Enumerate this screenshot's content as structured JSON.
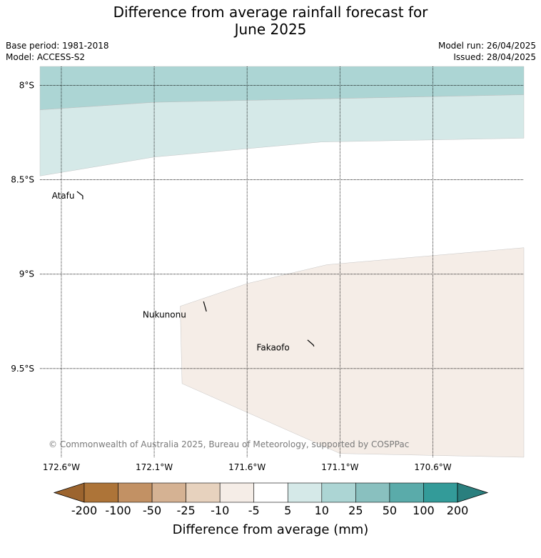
{
  "title_line1": "Difference from average rainfall forecast for",
  "title_line2": "June 2025",
  "base_period": "Base period: 1981-2018",
  "model": "Model: ACCESS-S2",
  "model_run": "Model run: 26/04/2025",
  "issued": "Issued: 28/04/2025",
  "copyright": "© Commonwealth of Australia 2025, Bureau of Meteorology, supported by COSPPac",
  "map": {
    "lat_range": [
      -9.97,
      -7.9
    ],
    "lon_range": [
      -172.715,
      -170.11
    ],
    "lat_ticks": [
      {
        "value": -8.0,
        "label": "8°S"
      },
      {
        "value": -8.5,
        "label": "8.5°S"
      },
      {
        "value": -9.0,
        "label": "9°S"
      },
      {
        "value": -9.5,
        "label": "9.5°S"
      }
    ],
    "lon_ticks": [
      {
        "value": -172.6,
        "label": "172.6°W"
      },
      {
        "value": -172.1,
        "label": "172.1°W"
      },
      {
        "value": -171.6,
        "label": "171.6°W"
      },
      {
        "value": -171.1,
        "label": "171.1°W"
      },
      {
        "value": -170.6,
        "label": "170.6°W"
      }
    ],
    "places": [
      {
        "name": "Atafu",
        "lon": -172.485,
        "lat": -8.585,
        "label_lon": -172.59,
        "label_lat": -8.585
      },
      {
        "name": "Nukunonu",
        "lon": -171.815,
        "lat": -9.19,
        "label_lon": -172.045,
        "label_lat": -9.215
      },
      {
        "name": "Fakaofo",
        "lon": -171.24,
        "lat": -9.375,
        "label_lon": -171.46,
        "label_lat": -9.39
      }
    ]
  },
  "regions": [
    {
      "category": "10 to 25",
      "color": "#acd5d4",
      "polygon": [
        [
          -172.715,
          -7.9
        ],
        [
          -170.11,
          -7.9
        ],
        [
          -170.11,
          -8.05
        ],
        [
          -172.1,
          -8.09
        ],
        [
          -172.715,
          -8.13
        ]
      ]
    },
    {
      "category": "5 to 10",
      "color": "#d5e9e8",
      "polygon": [
        [
          -172.715,
          -8.13
        ],
        [
          -172.1,
          -8.09
        ],
        [
          -170.11,
          -8.05
        ],
        [
          -170.11,
          -8.28
        ],
        [
          -171.2,
          -8.3
        ],
        [
          -172.1,
          -8.38
        ],
        [
          -172.715,
          -8.48
        ]
      ]
    },
    {
      "category": "-10 to -5",
      "color": "#f5ede7",
      "polygon": [
        [
          -170.11,
          -8.86
        ],
        [
          -171.17,
          -8.95
        ],
        [
          -171.6,
          -9.05
        ],
        [
          -171.96,
          -9.17
        ],
        [
          -171.95,
          -9.58
        ],
        [
          -171.1,
          -9.95
        ],
        [
          -170.11,
          -9.97
        ]
      ]
    }
  ],
  "colorbar": {
    "title": "Difference from average (mm)",
    "labels": [
      "-200",
      "-100",
      "-50",
      "-25",
      "-10",
      "-5",
      "5",
      "10",
      "25",
      "50",
      "100",
      "200"
    ],
    "colors": [
      "#ad7438",
      "#c29164",
      "#d5b293",
      "#e7d2be",
      "#f5ede7",
      "#ffffff",
      "#d5e9e8",
      "#acd5d4",
      "#89c0bf",
      "#5aabaa",
      "#339b99"
    ],
    "under_color": "#9c642e",
    "over_color": "#2a7f7e"
  }
}
